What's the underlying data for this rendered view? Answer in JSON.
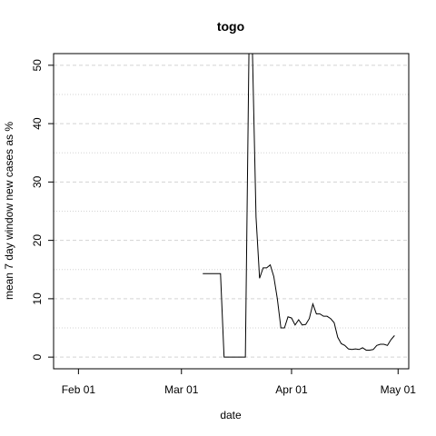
{
  "chart_data": {
    "type": "line",
    "title": "togo",
    "xlabel": "date",
    "ylabel": "mean  7  day window new cases as %",
    "x_ticks": [
      {
        "date": "2020-02-01",
        "label": "Feb 01"
      },
      {
        "date": "2020-03-01",
        "label": "Mar 01"
      },
      {
        "date": "2020-04-01",
        "label": "Apr 01"
      },
      {
        "date": "2020-05-01",
        "label": "May 01"
      }
    ],
    "y_ticks": [
      0,
      10,
      20,
      30,
      40,
      50
    ],
    "xlim": [
      "2020-01-25",
      "2020-05-04"
    ],
    "ylim": [
      -2,
      52
    ],
    "grid": {
      "horizontal": true,
      "style": "dashed"
    },
    "line_color": "#000000",
    "series": [
      {
        "x": [
          "2020-03-07",
          "2020-03-12",
          "2020-03-13",
          "2020-03-14",
          "2020-03-19",
          "2020-03-20",
          "2020-03-21",
          "2020-03-22",
          "2020-03-23",
          "2020-03-24",
          "2020-03-25",
          "2020-03-26",
          "2020-03-27",
          "2020-03-28",
          "2020-03-29",
          "2020-03-30",
          "2020-03-31",
          "2020-04-01",
          "2020-04-02",
          "2020-04-03",
          "2020-04-04",
          "2020-04-05",
          "2020-04-06",
          "2020-04-07",
          "2020-04-08",
          "2020-04-09",
          "2020-04-10",
          "2020-04-11",
          "2020-04-12",
          "2020-04-13",
          "2020-04-14",
          "2020-04-15",
          "2020-04-16",
          "2020-04-17",
          "2020-04-18",
          "2020-04-19",
          "2020-04-20",
          "2020-04-21",
          "2020-04-22",
          "2020-04-23",
          "2020-04-24",
          "2020-04-25",
          "2020-04-26",
          "2020-04-27",
          "2020-04-28",
          "2020-04-29",
          "2020-04-30"
        ],
        "y": [
          14.3,
          14.3,
          0,
          0,
          0,
          52,
          52,
          24,
          13.5,
          15.3,
          15.3,
          15.8,
          13.8,
          10,
          5,
          5,
          6.9,
          6.7,
          5.5,
          6.4,
          5.5,
          5.6,
          6.6,
          9.1,
          7.4,
          7.4,
          7.0,
          7.0,
          6.6,
          5.9,
          3.4,
          2.3,
          2.0,
          1.4,
          1.3,
          1.4,
          1.3,
          1.6,
          1.2,
          1.2,
          1.3,
          2.0,
          2.2,
          2.2,
          2.0,
          3.0,
          3.7
        ]
      }
    ]
  }
}
